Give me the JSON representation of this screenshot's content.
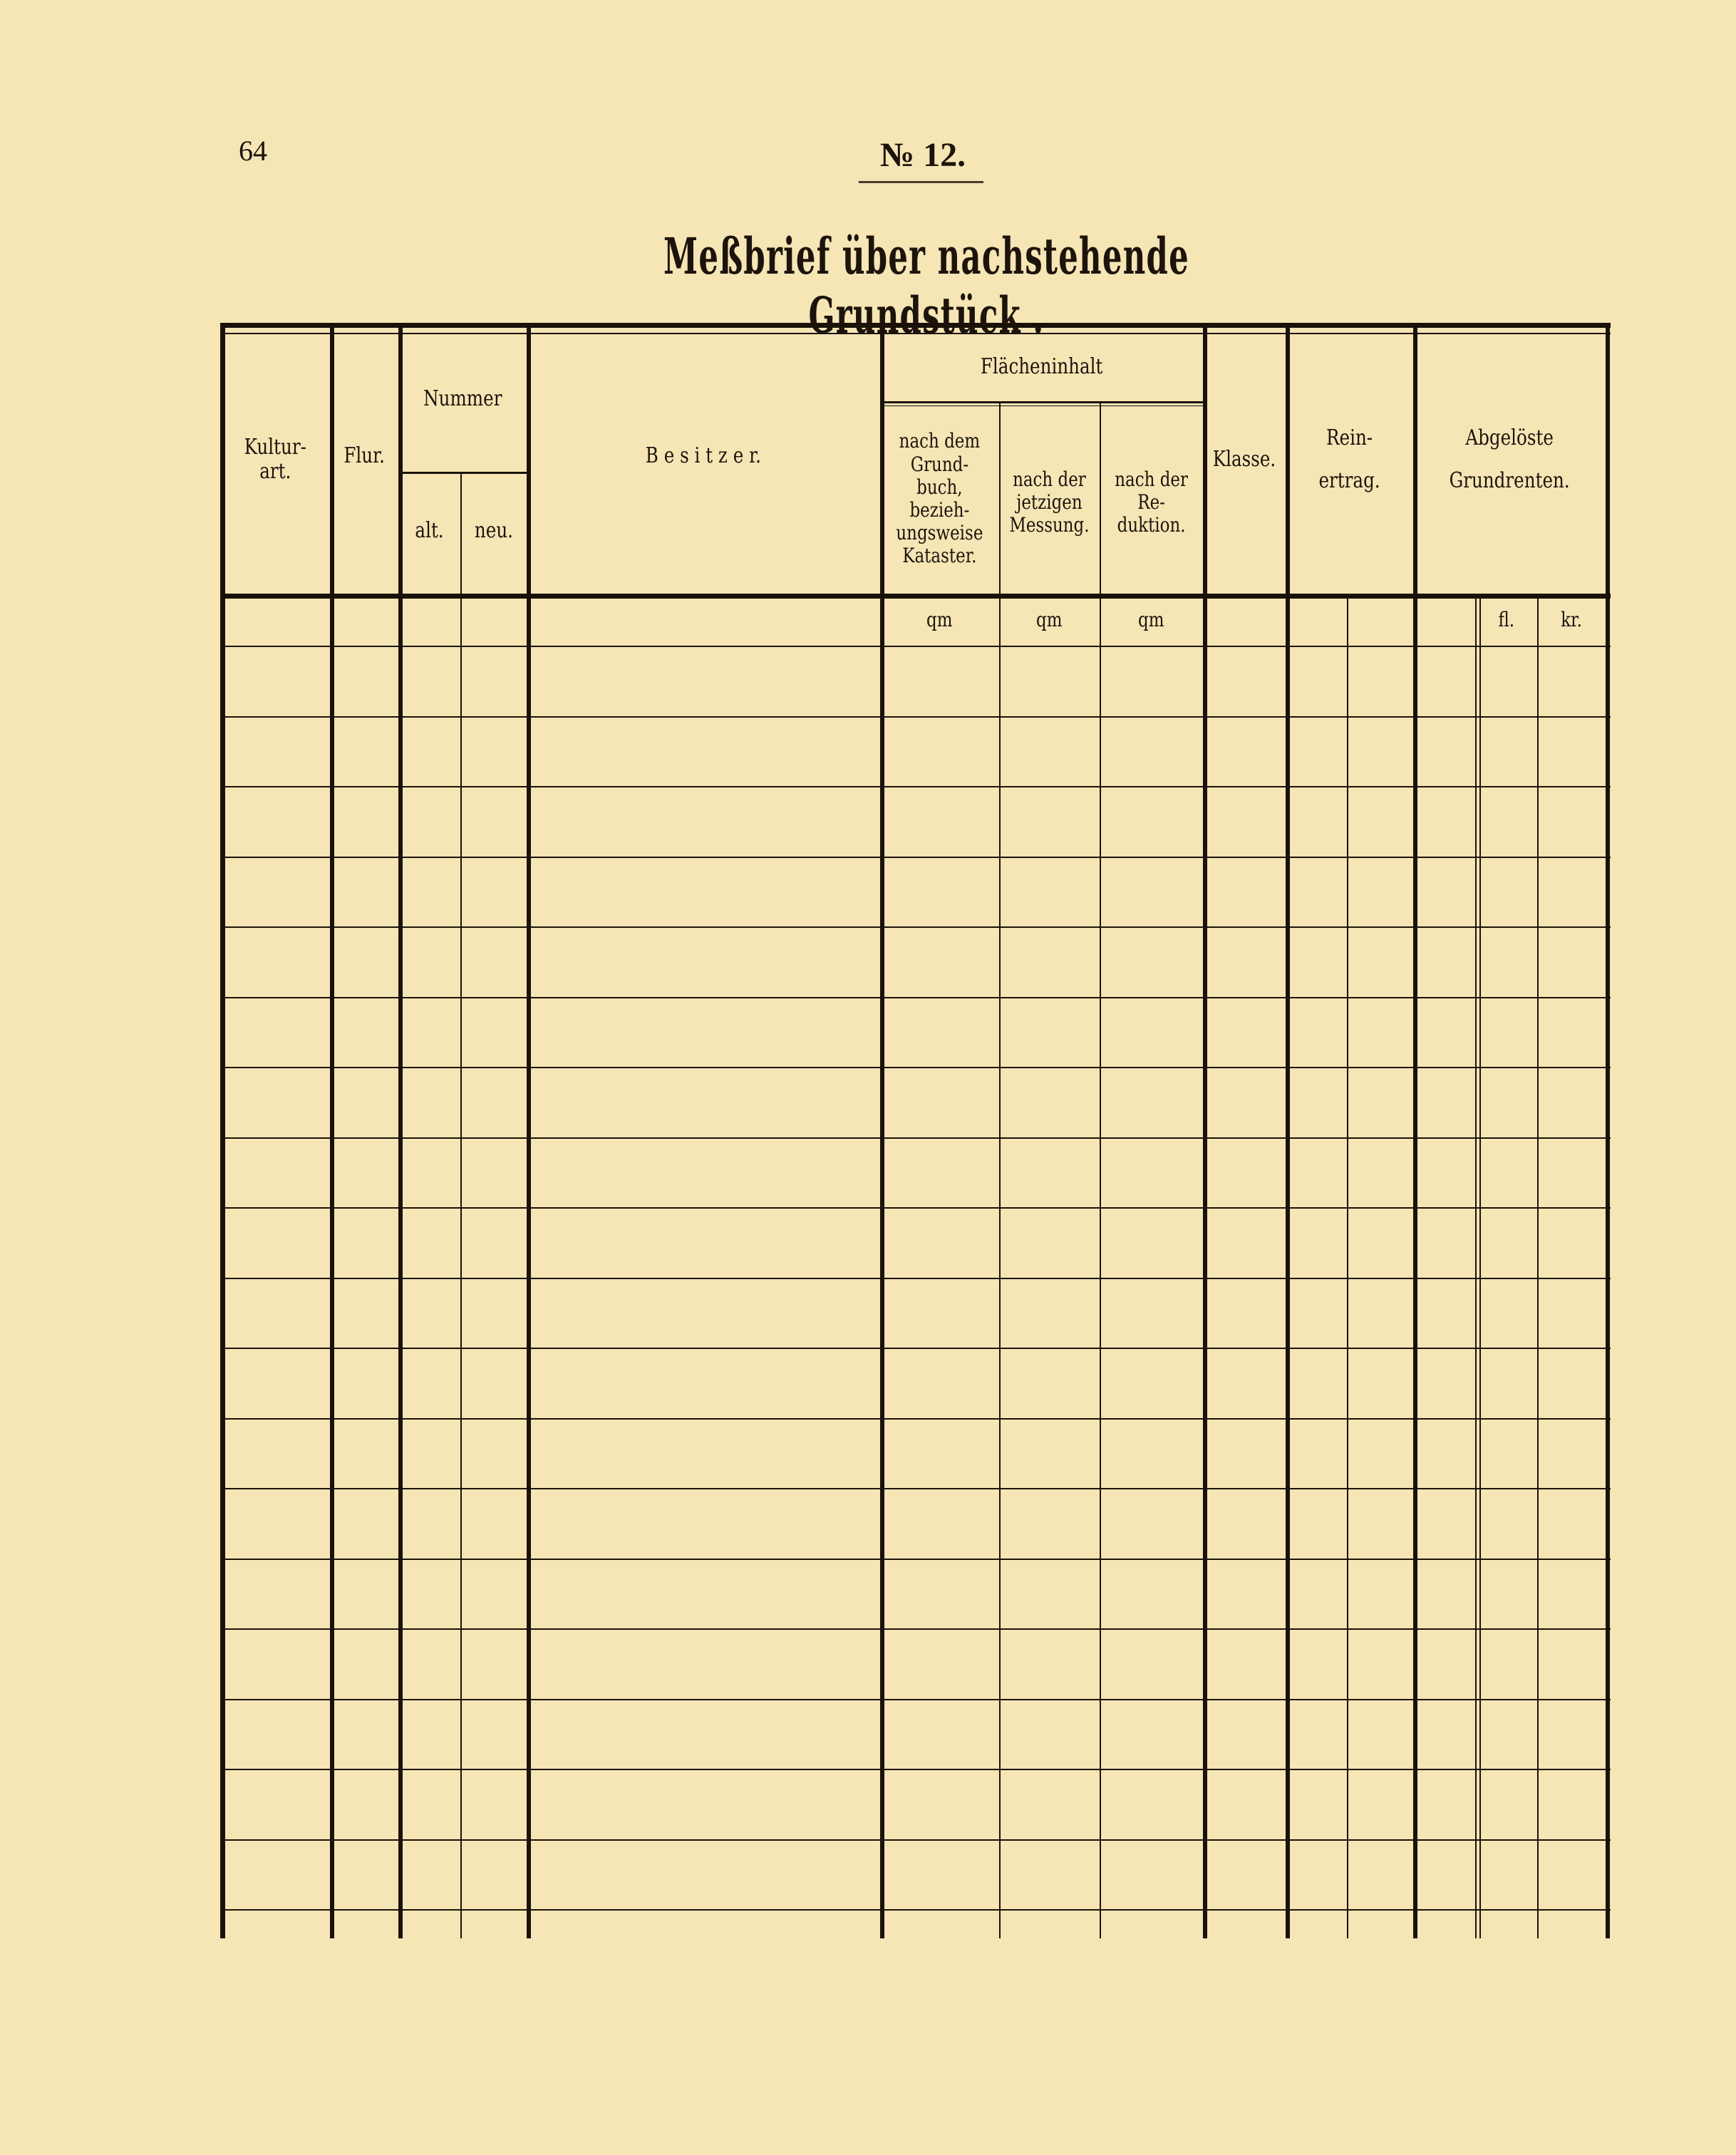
{
  "page": {
    "page_number": "64",
    "form_number": "№ 12.",
    "title": "Meßbrief über nachstehende Grundstück ."
  },
  "table": {
    "headers": {
      "kulturart": "Kultur-\nart.",
      "flur": "Flur.",
      "nummer": "Nummer",
      "nummer_alt": "alt.",
      "nummer_neu": "neu.",
      "besitzer": "B e s i t z e r.",
      "flaecheninhalt": "Flächeninhalt",
      "nach_grundbuch": "nach dem\nGrund-\nbuch,\nbezieh-\nungsweise\nKataster.",
      "nach_messung": "nach der\njetzigen\nMessung.",
      "nach_reduktion": "nach der\nRe-\nduktion.",
      "klasse": "Klasse.",
      "reinertrag": "Rein-\nertrag.",
      "grundrenten": "Abgelöste\nGrundrenten."
    },
    "units": {
      "grundbuch": "qm",
      "messung": "qm",
      "reduktion": "qm",
      "fl": "fl.",
      "kr": "kr."
    },
    "rows": []
  },
  "colors": {
    "paper": "#f6e5b5",
    "ink": "#1a120a"
  }
}
